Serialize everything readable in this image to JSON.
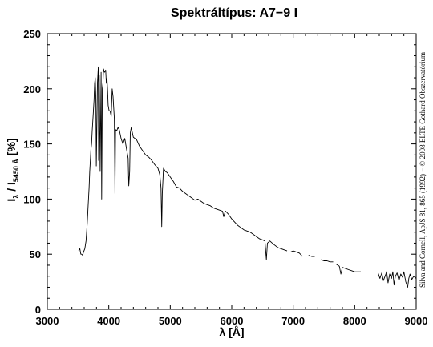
{
  "chart_data": {
    "type": "line",
    "title": "Spektráltípus: A7−9 I",
    "xlabel": "λ [Å]",
    "ylabel": {
      "main": "I",
      "sub1": "λ",
      "mid": " / I",
      "sub2": "5450 Å",
      "unit": " [%]"
    },
    "credit": "Silva and Cornell, ApJS 81, 865 (1992) − © 2008 ELTE Gothard Obszervatórium",
    "xlim": [
      3000,
      9000
    ],
    "ylim": [
      0,
      250
    ],
    "x_ticks": [
      3000,
      4000,
      5000,
      6000,
      7000,
      8000,
      9000
    ],
    "y_ticks": [
      0,
      50,
      100,
      150,
      200,
      250
    ],
    "grid": false,
    "series": [
      {
        "color": "#000000",
        "segments": [
          {
            "x": [
              3510,
              3530,
              3545,
              3560,
              3575,
              3590,
              3610,
              3630,
              3650,
              3665,
              3680,
              3690,
              3700,
              3710,
              3720,
              3730,
              3745,
              3760,
              3770,
              3780,
              3790,
              3797,
              3805,
              3815,
              3830,
              3835,
              3845,
              3860,
              3875,
              3885,
              3895,
              3905,
              3915,
              3930,
              3950,
              3960,
              3970,
              3980,
              3990,
              4005,
              4020,
              4040,
              4055,
              4070,
              4090,
              4101,
              4110,
              4130,
              4150,
              4170,
              4200,
              4230,
              4260,
              4290,
              4315,
              4325,
              4340,
              4350,
              4365,
              4400,
              4450,
              4500,
              4550,
              4600,
              4650,
              4700,
              4750,
              4800,
              4830,
              4850,
              4861,
              4870,
              4890,
              4920,
              4950,
              5000,
              5050,
              5100,
              5150,
              5200,
              5250,
              5300,
              5350,
              5400,
              5450,
              5500,
              5550,
              5600,
              5650,
              5700,
              5750,
              5800,
              5850,
              5870,
              5890,
              5900,
              5950,
              6000,
              6050,
              6100,
              6150,
              6200,
              6250,
              6300,
              6350,
              6400,
              6450,
              6500,
              6540,
              6563,
              6580,
              6620,
              6680,
              6750,
              6800,
              6850,
              6900
            ],
            "y": [
              53,
              55,
              50,
              50,
              49,
              52,
              55,
              62,
              78,
              95,
              110,
              125,
              135,
              145,
              150,
              162,
              175,
              190,
              205,
              210,
              190,
              130,
              160,
              205,
              220,
              135,
              212,
              125,
              215,
              100,
              200,
              205,
              218,
              215,
              217,
              205,
              210,
              200,
              185,
              180,
              180,
              175,
              200,
              193,
              173,
              105,
              163,
              162,
              165,
              163,
              155,
              150,
              155,
              145,
              137,
              112,
              125,
              160,
              165,
              156,
              154,
              148,
              144,
              140,
              138,
              135,
              131,
              128,
              122,
              110,
              75,
              105,
              128,
              125,
              124,
              120,
              116,
              111,
              110,
              107,
              105,
              103,
              101,
              99,
              100,
              98,
              96,
              95,
              94,
              92,
              91,
              90,
              89,
              84,
              88,
              89,
              86,
              82,
              79,
              76,
              74,
              72,
              71,
              70,
              68,
              66,
              64,
              63,
              62,
              45,
              60,
              62,
              59,
              56,
              55,
              54,
              53
            ]
          },
          {
            "x": [
              6960,
              7000,
              7050,
              7100,
              7150
            ],
            "y": [
              52,
              53,
              52,
              51,
              48
            ]
          },
          {
            "x": [
              7250,
              7300,
              7350
            ],
            "y": [
              49,
              48,
              48
            ]
          },
          {
            "x": [
              7450,
              7500,
              7550,
              7600,
              7650
            ],
            "y": [
              45,
              44,
              44,
              43,
              43
            ]
          },
          {
            "x": [
              7700,
              7750,
              7775,
              7800,
              7850,
              7900,
              7950,
              8000,
              8050,
              8100
            ],
            "y": [
              41,
              39,
              32,
              38,
              37,
              36,
              35,
              34,
              34,
              34
            ]
          },
          {
            "x": [
              8380,
              8410,
              8440,
              8467,
              8500,
              8520,
              8542,
              8570,
              8598,
              8620,
              8640,
              8662,
              8690,
              8720,
              8750,
              8780,
              8800,
              8830,
              8862,
              8880,
              8900,
              8930,
              8960,
              9000
            ],
            "y": [
              33,
              28,
              33,
              26,
              31,
              34,
              24,
              32,
              28,
              34,
              22,
              30,
              33,
              26,
              32,
              29,
              34,
              25,
              20,
              28,
              32,
              27,
              30,
              28
            ]
          }
        ]
      }
    ]
  }
}
